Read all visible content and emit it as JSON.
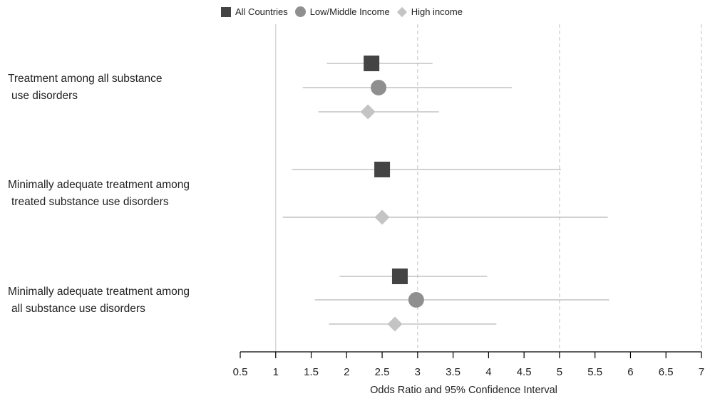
{
  "chart_data": {
    "type": "forest",
    "xlabel": "Odds Ratio and 95% Confidence Interval",
    "xlim": [
      0.5,
      7
    ],
    "xticks": [
      "0.5",
      "1",
      "1.5",
      "2",
      "2.5",
      "3",
      "3.5",
      "4",
      "4.5",
      "5",
      "5.5",
      "6",
      "6.5",
      "7"
    ],
    "reference_line": 1,
    "dashed_lines": [
      3,
      5,
      7
    ],
    "legend": {
      "placement": "top-center",
      "entries": [
        {
          "name": "All Countries",
          "marker": "square",
          "color": "#444444"
        },
        {
          "name": "Low/Middle Income",
          "marker": "circle",
          "color": "#8f8f8f"
        },
        {
          "name": "High income",
          "marker": "diamond",
          "color": "#c4c4c4"
        }
      ]
    },
    "categories": [
      {
        "label_line1": "Treatment among all substance",
        "label_line2": "use disorders",
        "points": [
          {
            "series": "All Countries",
            "or": 2.35,
            "lo": 1.72,
            "hi": 3.21
          },
          {
            "series": "Low/Middle Income",
            "or": 2.45,
            "lo": 1.38,
            "hi": 4.33
          },
          {
            "series": "High income",
            "or": 2.3,
            "lo": 1.6,
            "hi": 3.3
          }
        ]
      },
      {
        "label_line1": "Minimally adequate treatment among",
        "label_line2": "treated substance use disorders",
        "points": [
          {
            "series": "All Countries",
            "or": 2.5,
            "lo": 1.23,
            "hi": 5.02
          },
          {
            "series": "High income",
            "or": 2.5,
            "lo": 1.1,
            "hi": 5.68
          }
        ]
      },
      {
        "label_line1": "Minimally adequate treatment among",
        "label_line2": "all substance use disorders",
        "points": [
          {
            "series": "All Countries",
            "or": 2.75,
            "lo": 1.9,
            "hi": 3.98
          },
          {
            "series": "Low/Middle Income",
            "or": 2.98,
            "lo": 1.55,
            "hi": 5.7
          },
          {
            "series": "High income",
            "or": 2.68,
            "lo": 1.75,
            "hi": 4.11
          }
        ]
      }
    ]
  }
}
